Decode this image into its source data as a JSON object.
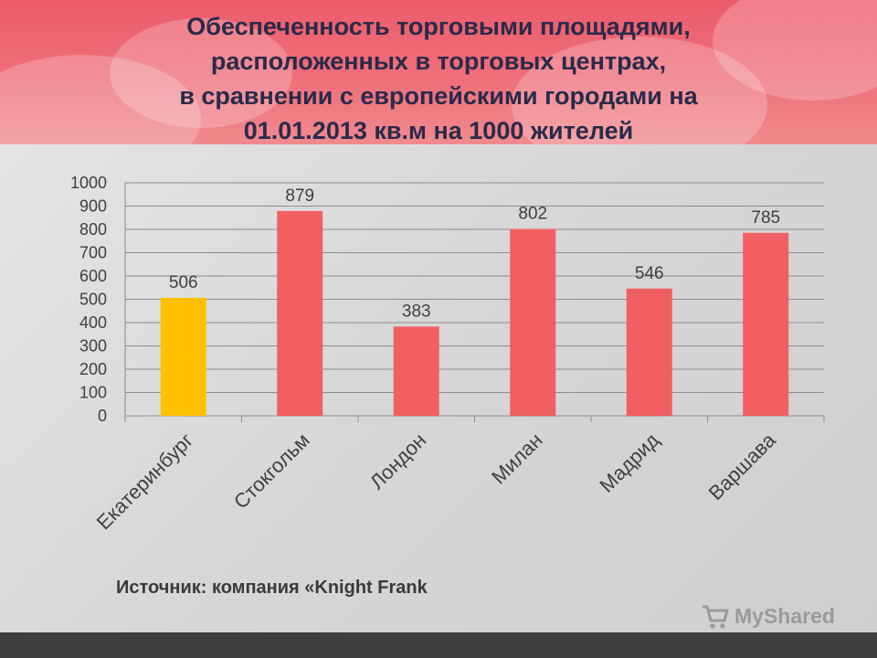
{
  "slide": {
    "title": "Обеспеченность торговыми площадями,\nрасположенных  в  торговых центрах,\nв сравнении с  европейскими городами  на\n01.01.2013  кв.м на 1000 жителей",
    "source": "Источник:  компания «Knight Frank",
    "logo_text": "MyShared",
    "logo_icon": "shopping-cart-icon"
  },
  "chart_data": {
    "type": "bar",
    "title": "",
    "xlabel": "",
    "ylabel": "",
    "categories": [
      "Екатеринбург",
      "Стокгольм",
      "Лондон",
      "Милан",
      "Мадрид",
      "Варшава"
    ],
    "values": [
      506,
      879,
      383,
      802,
      546,
      785
    ],
    "data_labels": [
      "506",
      "879",
      "383",
      "802",
      "546",
      "785"
    ],
    "y_ticks": [
      "0",
      "100",
      "200",
      "300",
      "400",
      "500",
      "600",
      "700",
      "800",
      "900",
      "1000"
    ],
    "ylim": [
      0,
      1000
    ],
    "grid": true,
    "legend": "none",
    "colors": {
      "highlight": "#ffc000",
      "default": "#f25f63",
      "grid": "#8c8c8c",
      "text": "#404040"
    },
    "highlight_index": 0
  }
}
